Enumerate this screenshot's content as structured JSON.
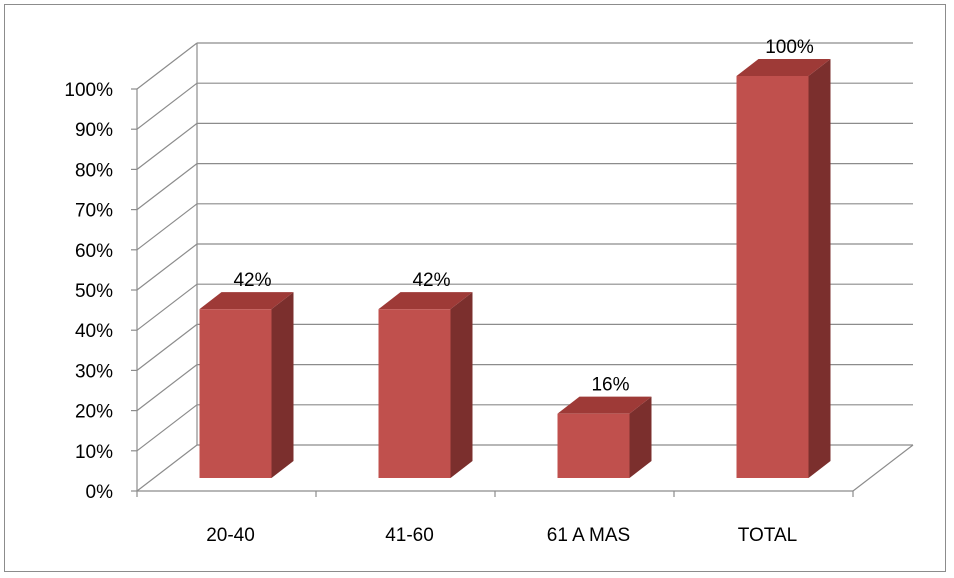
{
  "chart_data": {
    "type": "bar",
    "categories": [
      "20-40",
      "41-60",
      "61 A MAS",
      "TOTAL"
    ],
    "values": [
      42,
      42,
      16,
      100
    ],
    "data_labels": [
      "42%",
      "42%",
      "16%",
      "100%"
    ],
    "y_ticks": [
      "0%",
      "10%",
      "20%",
      "30%",
      "40%",
      "50%",
      "60%",
      "70%",
      "80%",
      "90%",
      "100%"
    ],
    "ylim": [
      0,
      100
    ],
    "grid": true,
    "legend": "none",
    "style": "3d-column",
    "colors": {
      "bar_front": "#c0504d",
      "bar_side": "#7b2f2d",
      "bar_top": "#9e3a37",
      "grid": "#8c8c8c"
    }
  }
}
